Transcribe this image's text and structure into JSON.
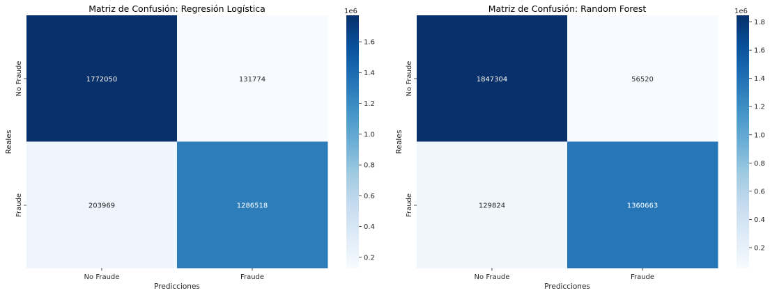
{
  "chart_data": [
    {
      "type": "heatmap",
      "title": "Matriz de Confusión: Regresión Logística",
      "xlabel": "Predicciones",
      "ylabel": "Reales",
      "x_categories": [
        "No Fraude",
        "Fraude"
      ],
      "y_categories": [
        "No Fraude",
        "Fraude"
      ],
      "values": [
        [
          1772050,
          131774
        ],
        [
          203969,
          1286518
        ]
      ],
      "colorbar": {
        "min": 131774,
        "max": 1772050,
        "ticks": [
          0.2,
          0.4,
          0.6,
          0.8,
          1.0,
          1.2,
          1.4,
          1.6
        ],
        "tick_labels": [
          "0.2",
          "0.4",
          "0.6",
          "0.8",
          "1.0",
          "1.2",
          "1.4",
          "1.6"
        ],
        "scale_label": "1e6",
        "cmap": "Blues"
      }
    },
    {
      "type": "heatmap",
      "title": "Matriz de Confusión: Random Forest",
      "xlabel": "Predicciones",
      "ylabel": "Reales",
      "x_categories": [
        "No Fraude",
        "Fraude"
      ],
      "y_categories": [
        "No Fraude",
        "Fraude"
      ],
      "values": [
        [
          1847304,
          56520
        ],
        [
          129824,
          1360663
        ]
      ],
      "colorbar": {
        "min": 56520,
        "max": 1847304,
        "ticks": [
          0.2,
          0.4,
          0.6,
          0.8,
          1.0,
          1.2,
          1.4,
          1.6,
          1.8
        ],
        "tick_labels": [
          "0.2",
          "0.4",
          "0.6",
          "0.8",
          "1.0",
          "1.2",
          "1.4",
          "1.6",
          "1.8"
        ],
        "scale_label": "1e6",
        "cmap": "Blues"
      }
    }
  ],
  "colors": {
    "blues": [
      "#f7fbff",
      "#deebf7",
      "#c6dbef",
      "#9ecae1",
      "#6baed6",
      "#4292c6",
      "#2171b5",
      "#08519c",
      "#08306b"
    ],
    "text_dark": "#262626",
    "text_light": "#ffffff"
  }
}
